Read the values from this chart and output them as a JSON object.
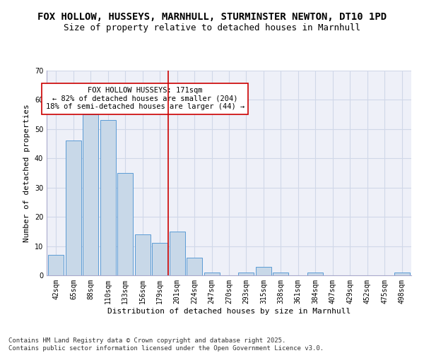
{
  "title1": "FOX HOLLOW, HUSSEYS, MARNHULL, STURMINSTER NEWTON, DT10 1PD",
  "title2": "Size of property relative to detached houses in Marnhull",
  "xlabel": "Distribution of detached houses by size in Marnhull",
  "ylabel": "Number of detached properties",
  "categories": [
    "42sqm",
    "65sqm",
    "88sqm",
    "110sqm",
    "133sqm",
    "156sqm",
    "179sqm",
    "201sqm",
    "224sqm",
    "247sqm",
    "270sqm",
    "293sqm",
    "315sqm",
    "338sqm",
    "361sqm",
    "384sqm",
    "407sqm",
    "429sqm",
    "452sqm",
    "475sqm",
    "498sqm"
  ],
  "values": [
    7,
    46,
    55,
    53,
    35,
    14,
    11,
    15,
    6,
    1,
    0,
    1,
    3,
    1,
    0,
    1,
    0,
    0,
    0,
    0,
    1
  ],
  "bar_color": "#c8d8e8",
  "bar_edge_color": "#5b9bd5",
  "vline_x": 6.5,
  "vline_color": "#cc0000",
  "annotation_text": "FOX HOLLOW HUSSEYS: 171sqm\n← 82% of detached houses are smaller (204)\n18% of semi-detached houses are larger (44) →",
  "annotation_box_color": "white",
  "annotation_box_edge": "#cc0000",
  "ylim": [
    0,
    70
  ],
  "yticks": [
    0,
    10,
    20,
    30,
    40,
    50,
    60,
    70
  ],
  "grid_color": "#d0d8e8",
  "bg_color": "#eef0f8",
  "footer": "Contains HM Land Registry data © Crown copyright and database right 2025.\nContains public sector information licensed under the Open Government Licence v3.0.",
  "title1_fontsize": 10,
  "title2_fontsize": 9,
  "annotation_fontsize": 7.5,
  "tick_fontsize": 7,
  "label_fontsize": 8,
  "footer_fontsize": 6.5
}
